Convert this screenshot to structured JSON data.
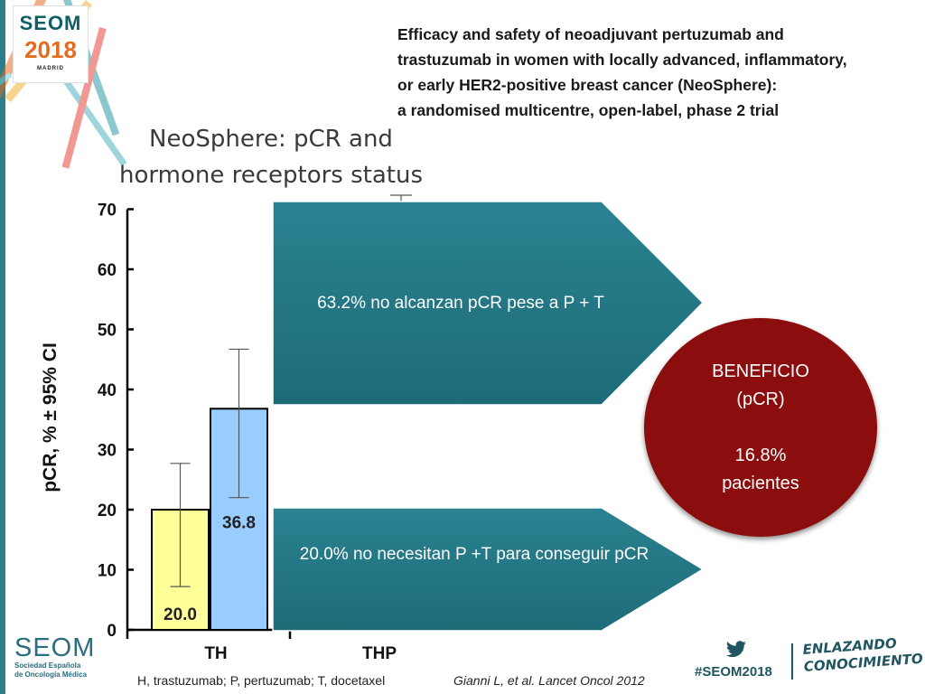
{
  "header": {
    "logo_name": "SEOM",
    "logo_year": "2018",
    "logo_city": "MADRID",
    "paper_title_lines": [
      "Efficacy and safety of neoadjuvant pertuzumab and",
      "trastuzumab in women with locally advanced, inflammatory,",
      "or early HER2-positive breast cancer (NeoSphere):",
      "a randomised multicentre, open-label, phase 2 trial"
    ],
    "slide_title_lines": [
      "NeoSphere: pCR and",
      "hormone receptors status"
    ]
  },
  "chart_data": {
    "type": "bar",
    "categories": [
      "TH",
      "THP"
    ],
    "series": [
      {
        "values": [
          20.0,
          36.8
        ],
        "ci_low": [
          7.2,
          22.0
        ],
        "ci_high": [
          27.7,
          46.7
        ]
      }
    ],
    "bar_colors": [
      "#ffff99",
      "#99ccff"
    ],
    "value_labels": [
      "20.0",
      "36.8"
    ],
    "ylabel": "pCR, % ± 95% CI",
    "ylim": [
      0,
      70
    ],
    "yticks": [
      0,
      10,
      20,
      30,
      40,
      50,
      60,
      70
    ],
    "grid": false
  },
  "callouts": {
    "arrow_top": "63.2% no alcanzan pCR pese a P + T",
    "arrow_bottom": "20.0% no necesitan P +T para conseguir pCR",
    "arrow_color": "#1e6b78",
    "benefit": {
      "line1": "BENEFICIO",
      "line2": "(pCR)",
      "line3": "16.8%",
      "line4": "pacientes",
      "color": "#8b0d0d"
    }
  },
  "footer": {
    "footnote": "H, trastuzumab; P, pertuzumab; T, docetaxel",
    "citation": "Gianni L, et al.  Lancet Oncol 2012",
    "seom_name": "SEOM",
    "seom_sub_line1": "Sociedad Española",
    "seom_sub_line2": "de Oncología Médica",
    "twitter_icon": "twitter-bird-icon",
    "hashtag": "#SEOM2018",
    "tagline_line1": "ENLAZANDO",
    "tagline_line2": "CONOCIMIENTO"
  }
}
